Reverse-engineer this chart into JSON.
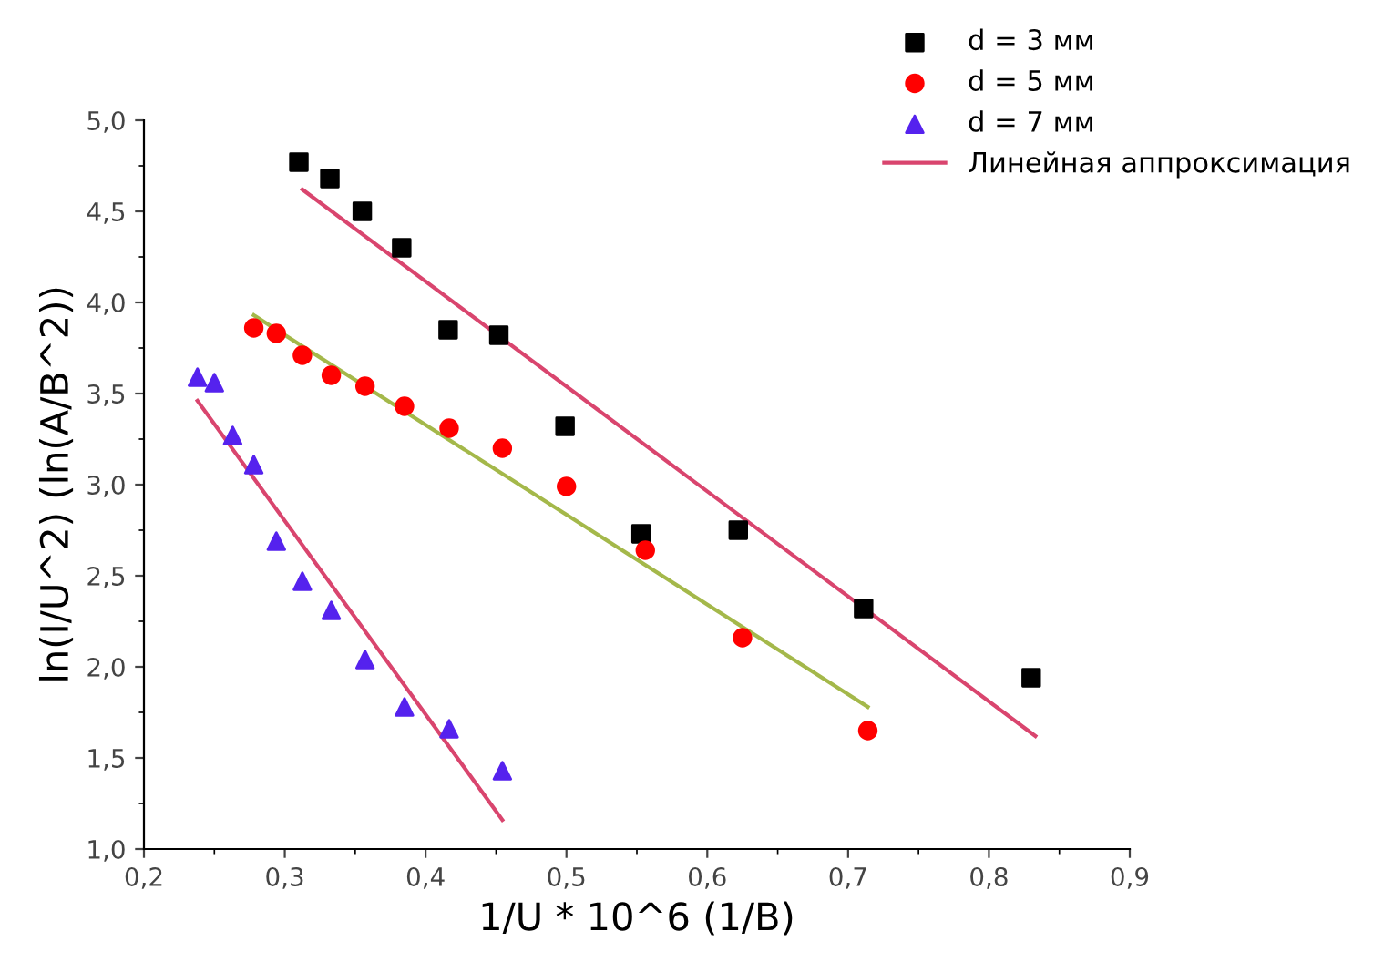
{
  "chart_data": {
    "type": "scatter",
    "xlabel": "1/U * 10^6 (1/B)",
    "ylabel": "ln(I/U^2) (ln(A/B^2))",
    "xlim": [
      0.2,
      0.9
    ],
    "ylim": [
      1.0,
      5.0
    ],
    "xticks": [
      {
        "value": 0.2,
        "label": "0,2"
      },
      {
        "value": 0.3,
        "label": "0,3"
      },
      {
        "value": 0.4,
        "label": "0,4"
      },
      {
        "value": 0.5,
        "label": "0,5"
      },
      {
        "value": 0.6,
        "label": "0,6"
      },
      {
        "value": 0.7,
        "label": "0,7"
      },
      {
        "value": 0.8,
        "label": "0,8"
      },
      {
        "value": 0.9,
        "label": "0,9"
      }
    ],
    "yticks": [
      {
        "value": 1.0,
        "label": "1,0"
      },
      {
        "value": 1.5,
        "label": "1,5"
      },
      {
        "value": 2.0,
        "label": "2,0"
      },
      {
        "value": 2.5,
        "label": "2,5"
      },
      {
        "value": 3.0,
        "label": "3,0"
      },
      {
        "value": 3.5,
        "label": "3,5"
      },
      {
        "value": 4.0,
        "label": "4,0"
      },
      {
        "value": 4.5,
        "label": "4,5"
      },
      {
        "value": 5.0,
        "label": "5,0"
      }
    ],
    "grid": false,
    "legend": "top right",
    "series": [
      {
        "name": "d = 3 мм",
        "marker": "square",
        "color": "#000000",
        "x": [
          0.31,
          0.332,
          0.355,
          0.383,
          0.416,
          0.452,
          0.499,
          0.553,
          0.622,
          0.711,
          0.83
        ],
        "values": [
          4.77,
          4.68,
          4.5,
          4.3,
          3.85,
          3.82,
          3.32,
          2.73,
          2.75,
          2.32,
          1.94
        ]
      },
      {
        "name": "d = 5 мм",
        "marker": "circle",
        "color": "#ff0000",
        "x": [
          0.278,
          0.294,
          0.3125,
          0.333,
          0.357,
          0.385,
          0.4167,
          0.4545,
          0.5,
          0.556,
          0.625,
          0.714
        ],
        "values": [
          3.86,
          3.83,
          3.71,
          3.6,
          3.54,
          3.43,
          3.31,
          3.2,
          2.99,
          2.64,
          2.16,
          1.65
        ]
      },
      {
        "name": "d = 7 мм",
        "marker": "triangle",
        "color": "#5522ee",
        "x": [
          0.238,
          0.25,
          0.263,
          0.278,
          0.294,
          0.3125,
          0.333,
          0.357,
          0.385,
          0.4167,
          0.4545
        ],
        "values": [
          3.59,
          3.56,
          3.27,
          3.11,
          2.69,
          2.47,
          2.31,
          2.04,
          1.78,
          1.66,
          1.43
        ]
      },
      {
        "name": "Линейная аппроксимация",
        "type": "line",
        "color": "#d9456e",
        "x": [
          0.3125,
          0.833
        ],
        "values": [
          4.62,
          1.62
        ]
      },
      {
        "type": "line",
        "color": "#a4b84a",
        "x": [
          0.278,
          0.714
        ],
        "values": [
          3.93,
          1.78
        ]
      },
      {
        "type": "line",
        "color": "#d9456e",
        "x": [
          0.238,
          0.4545
        ],
        "values": [
          3.46,
          1.16
        ]
      }
    ]
  }
}
